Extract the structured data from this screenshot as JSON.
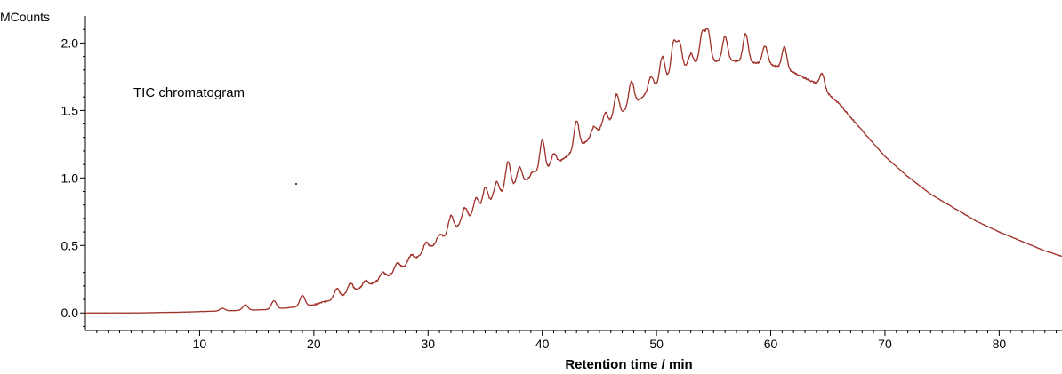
{
  "chart_data": {
    "type": "line",
    "title": "",
    "annotation": "TIC chromatogram",
    "ylabel": "MCounts",
    "xlabel": "Retention time / min",
    "xlim": [
      0,
      85.5
    ],
    "ylim": [
      -0.13,
      2.2
    ],
    "x_ticks": [
      10,
      20,
      30,
      40,
      50,
      60,
      70,
      80
    ],
    "y_ticks": [
      0.0,
      0.5,
      1.0,
      1.5,
      2.0
    ],
    "x_tick_labels": [
      "10",
      "20",
      "30",
      "40",
      "50",
      "60",
      "70",
      "80"
    ],
    "y_tick_labels": [
      "0.0",
      "0.5",
      "1.0",
      "1.5",
      "2.0"
    ],
    "grid": false,
    "series_color": "#a0302a",
    "series": [
      {
        "name": "",
        "x": [
          0,
          4,
          8,
          10,
          12,
          14,
          16,
          18,
          20,
          22,
          24,
          26,
          28,
          30,
          32,
          34,
          36,
          38,
          40,
          42,
          44,
          46,
          48,
          50,
          52,
          54,
          56,
          58,
          60,
          62,
          64,
          66,
          68,
          70,
          72,
          74,
          76,
          78,
          80,
          82,
          84,
          85.5
        ],
        "y": [
          0.0,
          0.0,
          0.005,
          0.01,
          0.015,
          0.02,
          0.025,
          0.04,
          0.06,
          0.11,
          0.18,
          0.25,
          0.35,
          0.47,
          0.6,
          0.73,
          0.86,
          0.96,
          1.04,
          1.15,
          1.28,
          1.42,
          1.55,
          1.68,
          1.8,
          1.86,
          1.87,
          1.86,
          1.84,
          1.78,
          1.7,
          1.55,
          1.35,
          1.16,
          1.01,
          0.88,
          0.78,
          0.68,
          0.6,
          0.53,
          0.46,
          0.42
        ]
      }
    ],
    "peaks": [
      {
        "x": 12.0,
        "y": 0.035
      },
      {
        "x": 14.0,
        "y": 0.06
      },
      {
        "x": 16.5,
        "y": 0.09
      },
      {
        "x": 19.0,
        "y": 0.13
      },
      {
        "x": 22.0,
        "y": 0.18
      },
      {
        "x": 23.2,
        "y": 0.22
      },
      {
        "x": 24.5,
        "y": 0.24
      },
      {
        "x": 26.0,
        "y": 0.3
      },
      {
        "x": 27.3,
        "y": 0.37
      },
      {
        "x": 28.5,
        "y": 0.43
      },
      {
        "x": 29.8,
        "y": 0.52
      },
      {
        "x": 31.0,
        "y": 0.58
      },
      {
        "x": 32.0,
        "y": 0.72
      },
      {
        "x": 33.2,
        "y": 0.78
      },
      {
        "x": 34.2,
        "y": 0.85
      },
      {
        "x": 35.0,
        "y": 0.93
      },
      {
        "x": 36.0,
        "y": 0.97
      },
      {
        "x": 37.0,
        "y": 1.12
      },
      {
        "x": 38.0,
        "y": 1.08
      },
      {
        "x": 39.2,
        "y": 1.05
      },
      {
        "x": 40.0,
        "y": 1.28
      },
      {
        "x": 41.0,
        "y": 1.18
      },
      {
        "x": 43.0,
        "y": 1.42
      },
      {
        "x": 44.5,
        "y": 1.38
      },
      {
        "x": 45.5,
        "y": 1.48
      },
      {
        "x": 46.5,
        "y": 1.62
      },
      {
        "x": 47.8,
        "y": 1.72
      },
      {
        "x": 49.5,
        "y": 1.75
      },
      {
        "x": 50.5,
        "y": 1.9
      },
      {
        "x": 51.5,
        "y": 2.0
      },
      {
        "x": 52.0,
        "y": 2.0
      },
      {
        "x": 53.0,
        "y": 1.92
      },
      {
        "x": 54.0,
        "y": 2.07
      },
      {
        "x": 54.5,
        "y": 2.09
      },
      {
        "x": 56.0,
        "y": 2.05
      },
      {
        "x": 57.8,
        "y": 2.07
      },
      {
        "x": 59.5,
        "y": 1.98
      },
      {
        "x": 61.2,
        "y": 1.97
      },
      {
        "x": 64.5,
        "y": 1.77
      }
    ]
  }
}
